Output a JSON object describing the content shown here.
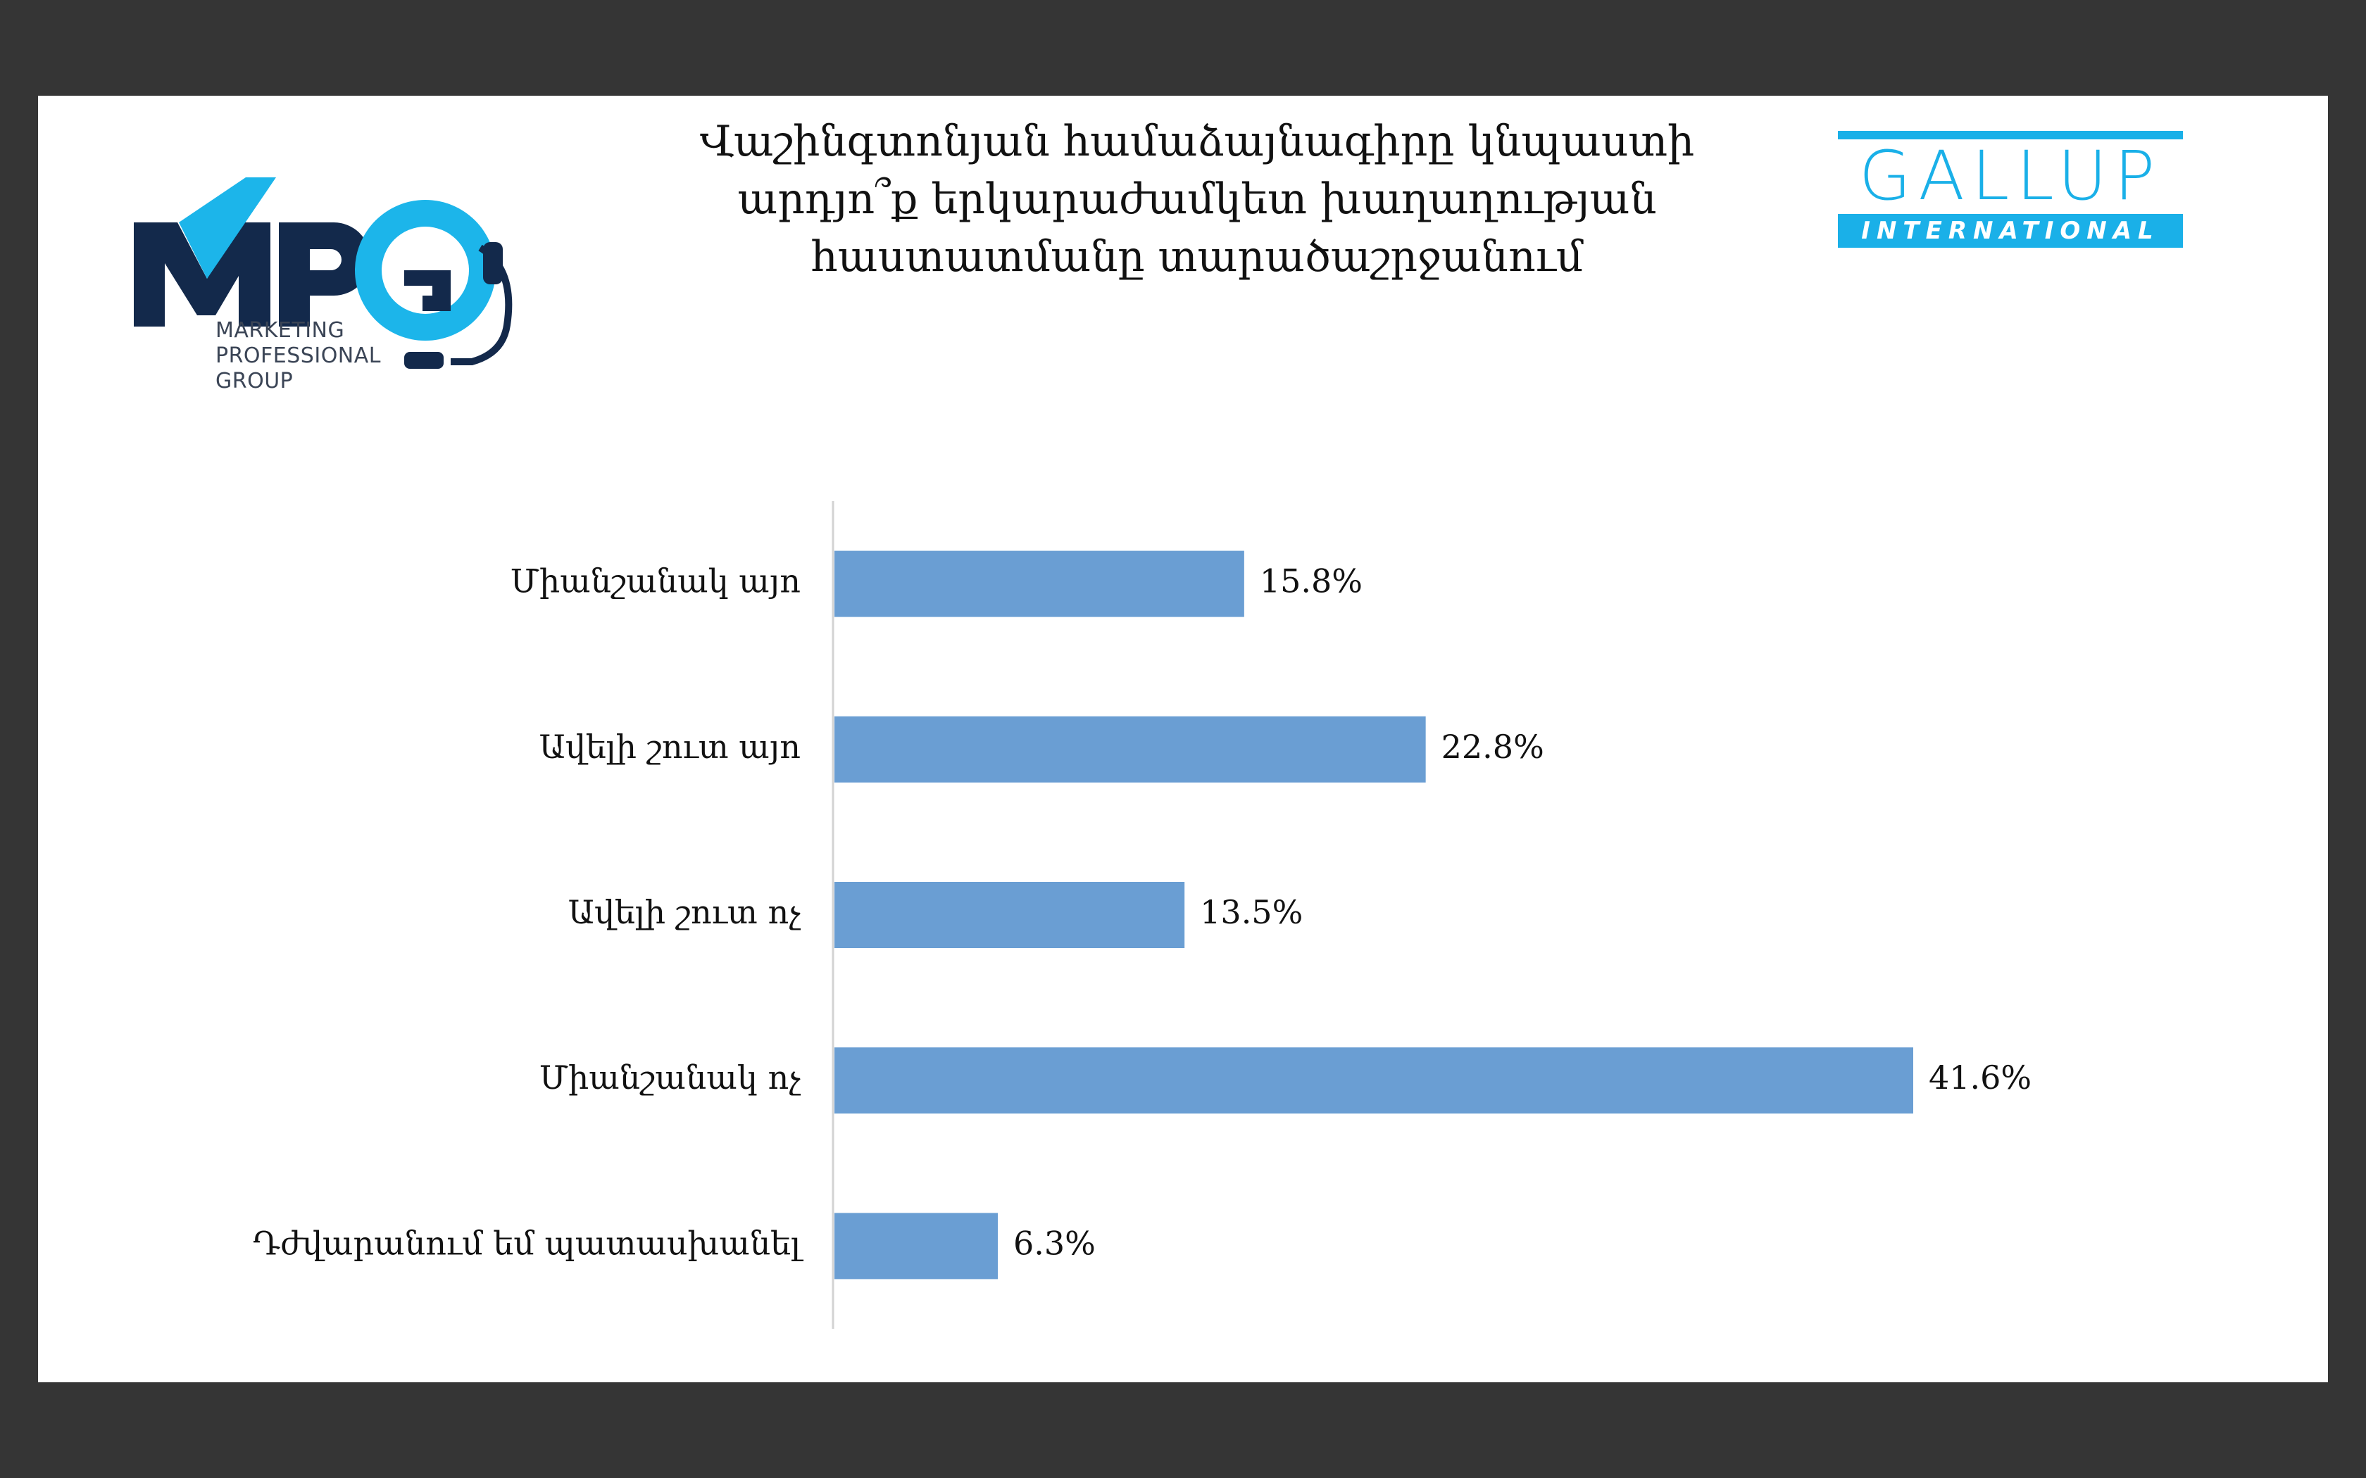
{
  "title_lines": [
    "Վաշինգտոնյան համաձայնագիրը կնպաստի",
    "արդյո՞ք երկարաժամկետ խաղաղության",
    "հաստատմանը տարածաշրջանում"
  ],
  "logos": {
    "mpg": {
      "mark": "MPG",
      "sub_lines": [
        "MARKETING",
        "PROFESSIONAL",
        "GROUP"
      ],
      "icon": "headset-icon",
      "colors": {
        "dark": "#13294b",
        "light": "#1cb5ea"
      }
    },
    "gallup": {
      "word": "GALLUP",
      "band": "INTERNATIONAL",
      "color": "#1ab0e8"
    }
  },
  "chart_data": {
    "type": "bar",
    "orientation": "horizontal",
    "categories": [
      "Միանշանակ այո",
      "Ավելի շուտ այո",
      "Ավելի շուտ ոչ",
      "Միանշանակ ոչ",
      "Դժվարանում եմ պատասխանել"
    ],
    "values": [
      15.8,
      22.8,
      13.5,
      41.6,
      6.3
    ],
    "value_labels": [
      "15.8%",
      "22.8%",
      "13.5%",
      "41.6%",
      "6.3%"
    ],
    "xlim": [
      0,
      50
    ],
    "bar_color": "#6a9ed3",
    "grid": false,
    "legend": "none"
  }
}
